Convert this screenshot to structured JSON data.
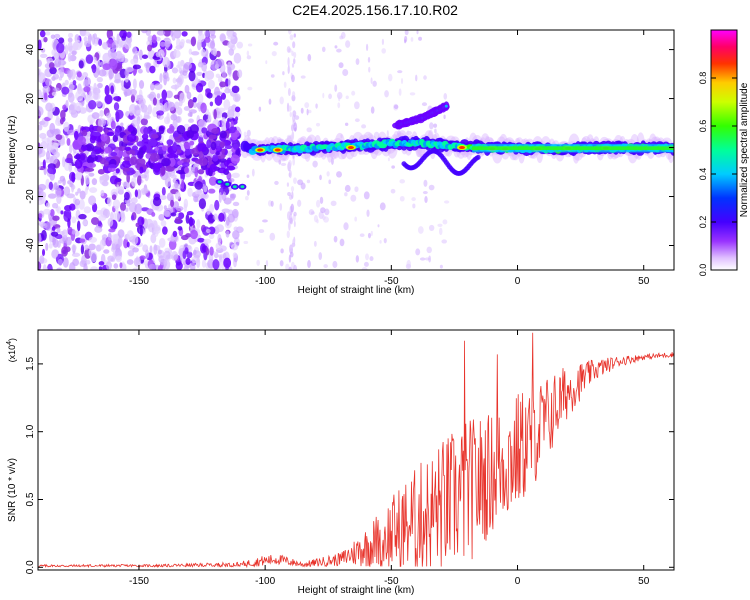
{
  "title": "C2E4.2025.156.17.10.R02",
  "chart_data": [
    {
      "type": "heatmap",
      "xlabel": "Height of straight line (km)",
      "ylabel": "Frequency (Hz)",
      "xlim": [
        -190,
        62
      ],
      "ylim": [
        -50,
        48
      ],
      "xticks": [
        -150,
        -100,
        -50,
        0,
        50
      ],
      "yticks": [
        -40,
        -20,
        0,
        20,
        40
      ],
      "grid": false,
      "colorbar": {
        "label": "Normalized spectral amplitude",
        "range": [
          0,
          1
        ],
        "ticks": [
          0.0,
          0.2,
          0.4,
          0.6,
          0.8
        ],
        "colors": [
          "#ffffff",
          "#d9b3ff",
          "#a64dff",
          "#6600ff",
          "#0000ff",
          "#0099ff",
          "#00ffff",
          "#00ff66",
          "#00ff00",
          "#ccff00",
          "#ffff00",
          "#ff9900",
          "#ff0000",
          "#ff00aa",
          "#ff00ff"
        ]
      },
      "ridges": [
        {
          "x": [
            -105,
            -90,
            -75,
            -60,
            -45,
            -30,
            -15,
            0,
            15,
            30,
            45,
            62
          ],
          "freq": [
            -1,
            -0.5,
            0,
            1,
            2,
            1,
            0,
            -0.5,
            -0.5,
            -0.3,
            -0.2,
            -0.2
          ]
        },
        {
          "x": [
            -48,
            -38,
            -28
          ],
          "freq": [
            9,
            12,
            17
          ]
        }
      ]
    },
    {
      "type": "line",
      "xlabel": "Height of straight line (km)",
      "ylabel": "SNR (10 * v/v)",
      "yscale_label": "(x10",
      "yscale_exp": "4",
      "yscale_close": ")",
      "xlim": [
        -190,
        62
      ],
      "ylim": [
        -0.02,
        1.75
      ],
      "xticks": [
        -150,
        -100,
        -50,
        0,
        50
      ],
      "yticks": [
        "0.0",
        "0.5",
        "1.0",
        "1.5"
      ],
      "color": "#e8342c",
      "envelope": {
        "x": [
          -190,
          -140,
          -110,
          -100,
          -95,
          -85,
          -70,
          -60,
          -50,
          -40,
          -30,
          -20,
          -10,
          0,
          10,
          20,
          30,
          40,
          50,
          62
        ],
        "y": [
          0.01,
          0.012,
          0.02,
          0.05,
          0.06,
          0.02,
          0.06,
          0.15,
          0.25,
          0.35,
          0.45,
          0.55,
          0.7,
          0.85,
          1.05,
          1.3,
          1.45,
          1.52,
          1.55,
          1.57
        ],
        "amp": [
          0.01,
          0.01,
          0.02,
          0.04,
          0.04,
          0.02,
          0.05,
          0.15,
          0.28,
          0.4,
          0.5,
          0.55,
          0.45,
          0.45,
          0.35,
          0.2,
          0.08,
          0.04,
          0.02,
          0.02
        ]
      },
      "peaks": [
        {
          "x": -21,
          "y": 1.67
        },
        {
          "x": 6,
          "y": 1.73
        },
        {
          "x": -8,
          "y": 1.57
        }
      ]
    }
  ]
}
